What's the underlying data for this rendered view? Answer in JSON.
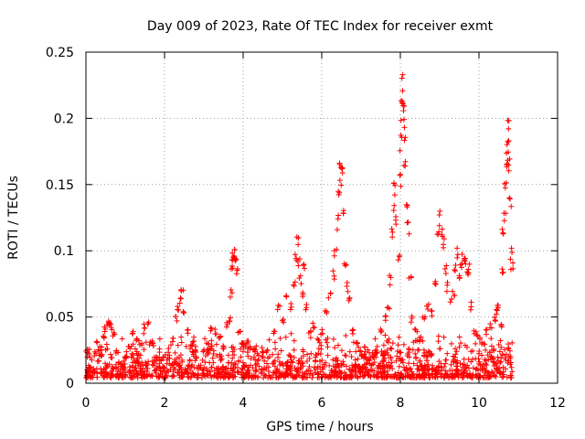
{
  "chart_data": {
    "type": "scatter",
    "title": "Day 009 of 2023, Rate Of TEC Index for receiver exmt",
    "xlabel": "GPS time / hours",
    "ylabel": "ROTI / TECUs",
    "xlim": [
      0,
      12
    ],
    "ylim": [
      0,
      0.25
    ],
    "xticks": [
      0,
      2,
      4,
      6,
      8,
      10,
      12
    ],
    "yticks": [
      0,
      0.05,
      0.1,
      0.15,
      0.2,
      0.25
    ],
    "xtick_labels": [
      "0",
      "2",
      "4",
      "6",
      "8",
      "10",
      "12"
    ],
    "ytick_labels": [
      "0",
      "0.05",
      "0.1",
      "0.15",
      "0.2",
      "0.25"
    ],
    "grid": true,
    "marker": "+",
    "color": "#ff0000",
    "series": [
      {
        "name": "ROTI",
        "description": "dense cloud of points 0.005–0.03 TECU from 0 to ~10.8 h with spikes",
        "points": [
          [
            0.02,
            0.026
          ],
          [
            0.05,
            0.024
          ],
          [
            0.1,
            0.012
          ],
          [
            0.2,
            0.008
          ],
          [
            0.3,
            0.018
          ],
          [
            0.4,
            0.022
          ],
          [
            0.45,
            0.035
          ],
          [
            0.5,
            0.042
          ],
          [
            0.55,
            0.046
          ],
          [
            0.6,
            0.048
          ],
          [
            0.65,
            0.044
          ],
          [
            0.7,
            0.038
          ],
          [
            0.8,
            0.025
          ],
          [
            0.9,
            0.015
          ],
          [
            1.0,
            0.02
          ],
          [
            1.1,
            0.028
          ],
          [
            1.2,
            0.04
          ],
          [
            1.3,
            0.035
          ],
          [
            1.4,
            0.03
          ],
          [
            1.5,
            0.045
          ],
          [
            1.6,
            0.046
          ],
          [
            1.7,
            0.03
          ],
          [
            1.8,
            0.02
          ],
          [
            1.9,
            0.018
          ],
          [
            2.0,
            0.012
          ],
          [
            2.1,
            0.02
          ],
          [
            2.2,
            0.034
          ],
          [
            2.3,
            0.05
          ],
          [
            2.35,
            0.06
          ],
          [
            2.4,
            0.065
          ],
          [
            2.45,
            0.072
          ],
          [
            2.5,
            0.055
          ],
          [
            2.6,
            0.04
          ],
          [
            2.7,
            0.03
          ],
          [
            2.8,
            0.02
          ],
          [
            3.0,
            0.025
          ],
          [
            3.1,
            0.03
          ],
          [
            3.2,
            0.042
          ],
          [
            3.3,
            0.04
          ],
          [
            3.4,
            0.035
          ],
          [
            3.5,
            0.028
          ],
          [
            3.6,
            0.045
          ],
          [
            3.65,
            0.05
          ],
          [
            3.7,
            0.07
          ],
          [
            3.72,
            0.09
          ],
          [
            3.74,
            0.098
          ],
          [
            3.76,
            0.103
          ],
          [
            3.78,
            0.1
          ],
          [
            3.8,
            0.095
          ],
          [
            3.85,
            0.085
          ],
          [
            3.9,
            0.04
          ],
          [
            4.0,
            0.03
          ],
          [
            4.1,
            0.032
          ],
          [
            4.2,
            0.028
          ],
          [
            4.3,
            0.025
          ],
          [
            4.5,
            0.02
          ],
          [
            4.6,
            0.025
          ],
          [
            4.8,
            0.04
          ],
          [
            4.9,
            0.06
          ],
          [
            5.0,
            0.05
          ],
          [
            5.1,
            0.065
          ],
          [
            5.2,
            0.06
          ],
          [
            5.3,
            0.075
          ],
          [
            5.35,
            0.1
          ],
          [
            5.38,
            0.113
          ],
          [
            5.42,
            0.095
          ],
          [
            5.45,
            0.08
          ],
          [
            5.5,
            0.07
          ],
          [
            5.55,
            0.09
          ],
          [
            5.6,
            0.06
          ],
          [
            5.7,
            0.04
          ],
          [
            5.8,
            0.045
          ],
          [
            5.9,
            0.035
          ],
          [
            6.0,
            0.04
          ],
          [
            6.1,
            0.055
          ],
          [
            6.2,
            0.07
          ],
          [
            6.3,
            0.085
          ],
          [
            6.35,
            0.1
          ],
          [
            6.4,
            0.125
          ],
          [
            6.45,
            0.15
          ],
          [
            6.48,
            0.165
          ],
          [
            6.5,
            0.17
          ],
          [
            6.52,
            0.16
          ],
          [
            6.55,
            0.13
          ],
          [
            6.6,
            0.09
          ],
          [
            6.65,
            0.075
          ],
          [
            6.7,
            0.065
          ],
          [
            6.8,
            0.04
          ],
          [
            6.9,
            0.03
          ],
          [
            7.0,
            0.025
          ],
          [
            7.1,
            0.02
          ],
          [
            7.2,
            0.018
          ],
          [
            7.3,
            0.02
          ],
          [
            7.4,
            0.025
          ],
          [
            7.5,
            0.04
          ],
          [
            7.6,
            0.05
          ],
          [
            7.7,
            0.06
          ],
          [
            7.75,
            0.08
          ],
          [
            7.8,
            0.12
          ],
          [
            7.83,
            0.14
          ],
          [
            7.85,
            0.155
          ],
          [
            7.9,
            0.13
          ],
          [
            7.95,
            0.1
          ],
          [
            8.0,
            0.16
          ],
          [
            8.02,
            0.19
          ],
          [
            8.03,
            0.21
          ],
          [
            8.05,
            0.225
          ],
          [
            8.06,
            0.23
          ],
          [
            8.08,
            0.215
          ],
          [
            8.1,
            0.19
          ],
          [
            8.12,
            0.165
          ],
          [
            8.15,
            0.14
          ],
          [
            8.2,
            0.12
          ],
          [
            8.25,
            0.08
          ],
          [
            8.3,
            0.05
          ],
          [
            8.4,
            0.04
          ],
          [
            8.5,
            0.035
          ],
          [
            8.6,
            0.05
          ],
          [
            8.7,
            0.06
          ],
          [
            8.8,
            0.055
          ],
          [
            8.9,
            0.08
          ],
          [
            8.95,
            0.115
          ],
          [
            9.0,
            0.128
          ],
          [
            9.05,
            0.12
          ],
          [
            9.1,
            0.11
          ],
          [
            9.15,
            0.09
          ],
          [
            9.2,
            0.075
          ],
          [
            9.3,
            0.065
          ],
          [
            9.35,
            0.07
          ],
          [
            9.4,
            0.09
          ],
          [
            9.45,
            0.1
          ],
          [
            9.5,
            0.085
          ],
          [
            9.55,
            0.09
          ],
          [
            9.6,
            0.1
          ],
          [
            9.65,
            0.095
          ],
          [
            9.7,
            0.085
          ],
          [
            9.75,
            0.09
          ],
          [
            9.8,
            0.06
          ],
          [
            9.9,
            0.04
          ],
          [
            10.0,
            0.035
          ],
          [
            10.1,
            0.03
          ],
          [
            10.2,
            0.04
          ],
          [
            10.3,
            0.045
          ],
          [
            10.4,
            0.05
          ],
          [
            10.45,
            0.055
          ],
          [
            10.5,
            0.06
          ],
          [
            10.55,
            0.045
          ],
          [
            10.6,
            0.09
          ],
          [
            10.62,
            0.12
          ],
          [
            10.65,
            0.13
          ],
          [
            10.68,
            0.155
          ],
          [
            10.7,
            0.165
          ],
          [
            10.72,
            0.18
          ],
          [
            10.74,
            0.19
          ],
          [
            10.76,
            0.195
          ],
          [
            10.78,
            0.17
          ],
          [
            10.8,
            0.14
          ],
          [
            10.82,
            0.1
          ],
          [
            10.84,
            0.09
          ]
        ]
      }
    ]
  }
}
